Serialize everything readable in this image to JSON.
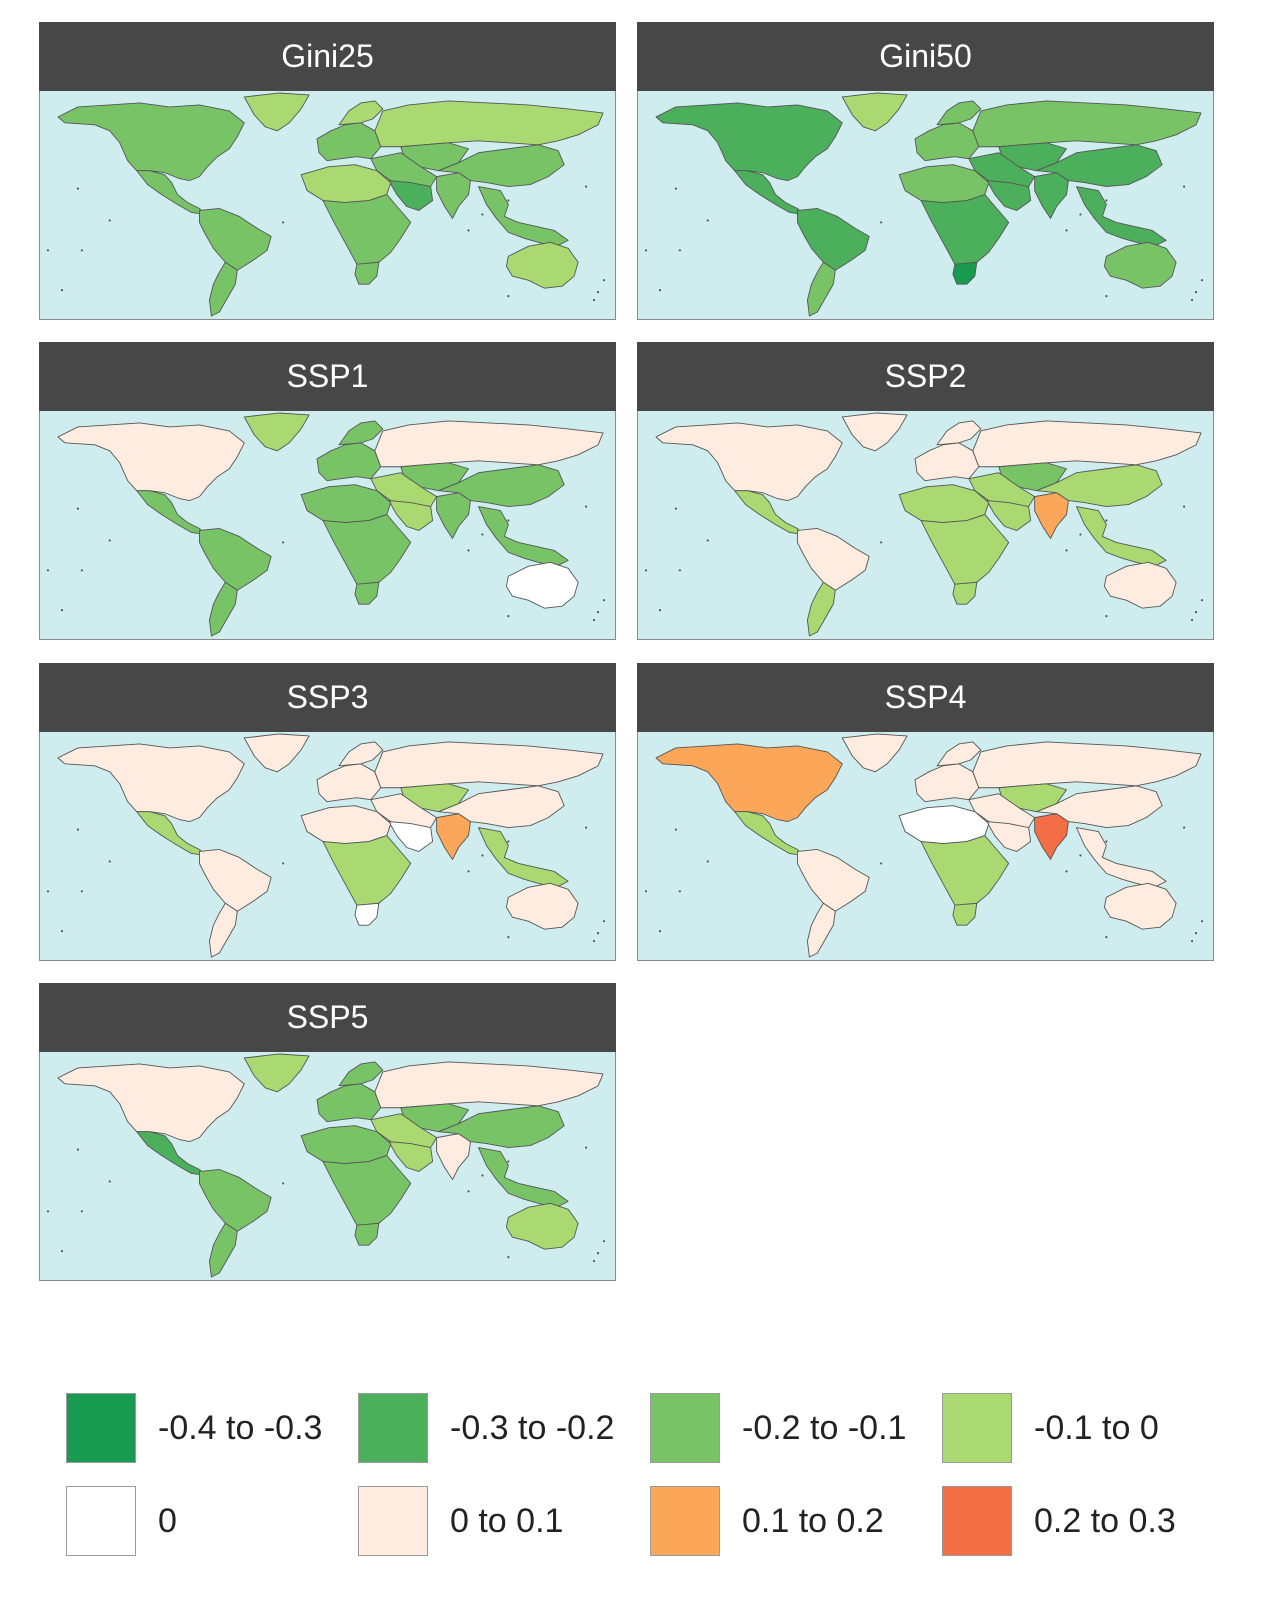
{
  "panels": [
    {
      "title": "Gini25",
      "classes": {
        "namerica": 3,
        "greenland": 4,
        "camerica": 3,
        "samerica": 3,
        "southcone": 3,
        "europe": 3,
        "scandinavia": 4,
        "russia": 4,
        "centralasia": 3,
        "mideast": 3,
        "arabia": 2,
        "nafrica": 4,
        "safrica": 3,
        "southafrica": 3,
        "india": 3,
        "china": 3,
        "seasia": 3,
        "australia": 4
      }
    },
    {
      "title": "Gini50",
      "classes": {
        "namerica": 2,
        "greenland": 4,
        "camerica": 2,
        "samerica": 2,
        "southcone": 3,
        "europe": 3,
        "scandinavia": 3,
        "russia": 3,
        "centralasia": 2,
        "mideast": 2,
        "arabia": 2,
        "nafrica": 3,
        "safrica": 2,
        "southafrica": 1,
        "india": 2,
        "china": 2,
        "seasia": 2,
        "australia": 3
      }
    },
    {
      "title": "SSP1",
      "classes": {
        "namerica": 6,
        "greenland": 4,
        "camerica": 3,
        "samerica": 3,
        "southcone": 3,
        "europe": 3,
        "scandinavia": 3,
        "russia": 6,
        "centralasia": 3,
        "mideast": 4,
        "arabia": 4,
        "nafrica": 3,
        "safrica": 3,
        "southafrica": 3,
        "india": 3,
        "china": 3,
        "seasia": 3,
        "australia": 5
      }
    },
    {
      "title": "SSP2",
      "classes": {
        "namerica": 6,
        "greenland": 6,
        "camerica": 4,
        "samerica": 6,
        "southcone": 4,
        "europe": 6,
        "scandinavia": 6,
        "russia": 6,
        "centralasia": 3,
        "mideast": 4,
        "arabia": 4,
        "nafrica": 4,
        "safrica": 4,
        "southafrica": 4,
        "india": 7,
        "china": 4,
        "seasia": 4,
        "australia": 6
      }
    },
    {
      "title": "SSP3",
      "classes": {
        "namerica": 6,
        "greenland": 6,
        "camerica": 4,
        "samerica": 6,
        "southcone": 6,
        "europe": 6,
        "scandinavia": 6,
        "russia": 6,
        "centralasia": 4,
        "mideast": 6,
        "arabia": 5,
        "nafrica": 6,
        "safrica": 4,
        "southafrica": 5,
        "india": 7,
        "china": 6,
        "seasia": 4,
        "australia": 6
      }
    },
    {
      "title": "SSP4",
      "classes": {
        "namerica": 7,
        "greenland": 6,
        "camerica": 4,
        "samerica": 6,
        "southcone": 6,
        "europe": 6,
        "scandinavia": 6,
        "russia": 6,
        "centralasia": 4,
        "mideast": 6,
        "arabia": 6,
        "nafrica": 5,
        "safrica": 4,
        "southafrica": 4,
        "india": 8,
        "china": 6,
        "seasia": 6,
        "australia": 6
      }
    },
    {
      "title": "SSP5",
      "classes": {
        "namerica": 6,
        "greenland": 4,
        "camerica": 2,
        "samerica": 3,
        "southcone": 3,
        "europe": 3,
        "scandinavia": 3,
        "russia": 6,
        "centralasia": 3,
        "mideast": 4,
        "arabia": 4,
        "nafrica": 3,
        "safrica": 3,
        "southafrica": 3,
        "india": 6,
        "china": 3,
        "seasia": 3,
        "australia": 4
      }
    }
  ],
  "legend": [
    {
      "label": "-0.4 to -0.3",
      "color": "#199a51"
    },
    {
      "label": "-0.3 to -0.2",
      "color": "#4caf5c"
    },
    {
      "label": "-0.2 to -0.1",
      "color": "#79c367"
    },
    {
      "label": "-0.1 to 0",
      "color": "#a9d970"
    },
    {
      "label": "0",
      "color": "#ffffff"
    },
    {
      "label": "0 to 0.1",
      "color": "#fdecdf"
    },
    {
      "label": "0.1 to 0.2",
      "color": "#fca65a"
    },
    {
      "label": "0.2 to 0.3",
      "color": "#f46e45"
    }
  ],
  "colors": {
    "ocean": "#cfecee",
    "strip": "#474747",
    "border": "#555555"
  }
}
